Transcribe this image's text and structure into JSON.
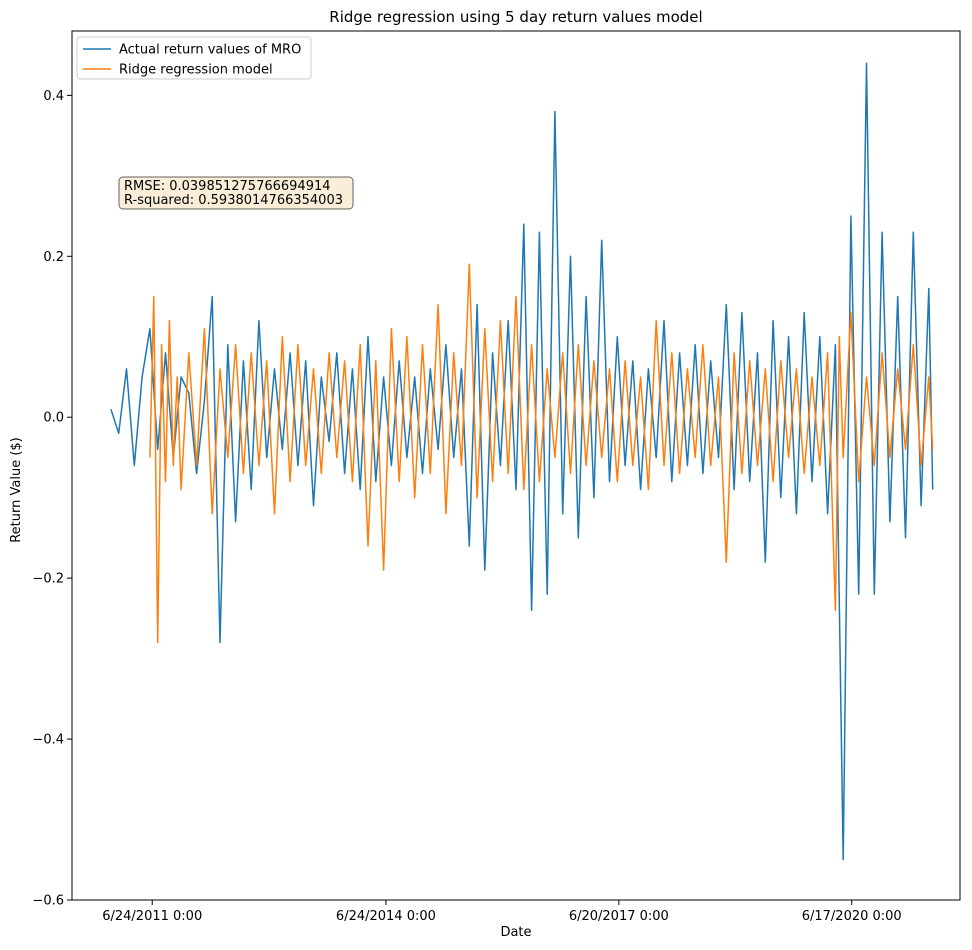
{
  "chart_data": {
    "type": "line",
    "title": "Ridge regression using 5 day return values model",
    "xlabel": "Date",
    "ylabel": "Return Value ($)",
    "ylim": [
      -0.6,
      0.48
    ],
    "yticks": [
      -0.6,
      -0.4,
      -0.2,
      0.0,
      0.2,
      0.4
    ],
    "ytick_labels": [
      "−0.6",
      "−0.4",
      "−0.2",
      "0.0",
      "0.2",
      "0.4"
    ],
    "xlim": [
      2010.45,
      2021.85
    ],
    "xticks": [
      2011.48,
      2014.48,
      2017.47,
      2020.46
    ],
    "xtick_labels": [
      "6/24/2011 0:00",
      "6/24/2014 0:00",
      "6/20/2017 0:00",
      "6/17/2020 0:00"
    ],
    "grid": false,
    "legend_position": "top-left",
    "annotation": {
      "lines": [
        "RMSE: 0.039851275766694914",
        "R-squared: 0.5938014766354003"
      ]
    },
    "series": [
      {
        "name": "Actual return values of MRO",
        "color": "#1f77b4",
        "x": [
          2010.95,
          2011.05,
          2011.15,
          2011.25,
          2011.35,
          2011.45,
          2011.55,
          2011.65,
          2011.75,
          2011.85,
          2011.95,
          2012.05,
          2012.15,
          2012.25,
          2012.35,
          2012.45,
          2012.55,
          2012.65,
          2012.75,
          2012.85,
          2012.95,
          2013.05,
          2013.15,
          2013.25,
          2013.35,
          2013.45,
          2013.55,
          2013.65,
          2013.75,
          2013.85,
          2013.95,
          2014.05,
          2014.15,
          2014.25,
          2014.35,
          2014.45,
          2014.55,
          2014.65,
          2014.75,
          2014.85,
          2014.95,
          2015.05,
          2015.15,
          2015.25,
          2015.35,
          2015.45,
          2015.55,
          2015.65,
          2015.75,
          2015.85,
          2015.95,
          2016.05,
          2016.15,
          2016.25,
          2016.35,
          2016.45,
          2016.55,
          2016.65,
          2016.75,
          2016.85,
          2016.95,
          2017.05,
          2017.15,
          2017.25,
          2017.35,
          2017.45,
          2017.55,
          2017.65,
          2017.75,
          2017.85,
          2017.95,
          2018.05,
          2018.15,
          2018.25,
          2018.35,
          2018.45,
          2018.55,
          2018.65,
          2018.75,
          2018.85,
          2018.95,
          2019.05,
          2019.15,
          2019.25,
          2019.35,
          2019.45,
          2019.55,
          2019.65,
          2019.75,
          2019.85,
          2019.95,
          2020.05,
          2020.15,
          2020.25,
          2020.35,
          2020.45,
          2020.55,
          2020.65,
          2020.75,
          2020.85,
          2020.95,
          2021.05,
          2021.15,
          2021.25,
          2021.35,
          2021.45,
          2021.5
        ],
        "y": [
          0.01,
          -0.02,
          0.06,
          -0.06,
          0.05,
          0.11,
          -0.04,
          0.08,
          -0.05,
          0.05,
          0.03,
          -0.07,
          0.02,
          0.15,
          -0.28,
          0.09,
          -0.13,
          0.07,
          -0.09,
          0.12,
          -0.05,
          0.06,
          -0.04,
          0.08,
          -0.06,
          0.07,
          -0.11,
          0.05,
          -0.03,
          0.08,
          -0.07,
          0.06,
          -0.09,
          0.1,
          -0.08,
          0.05,
          -0.06,
          0.07,
          -0.05,
          0.05,
          -0.07,
          0.06,
          -0.04,
          0.09,
          -0.05,
          0.06,
          -0.16,
          0.14,
          -0.19,
          0.08,
          -0.06,
          0.12,
          -0.09,
          0.24,
          -0.24,
          0.23,
          -0.22,
          0.38,
          -0.12,
          0.2,
          -0.15,
          0.15,
          -0.1,
          0.22,
          -0.08,
          0.1,
          -0.06,
          0.07,
          -0.09,
          0.06,
          -0.05,
          0.12,
          -0.08,
          0.08,
          -0.06,
          0.09,
          -0.07,
          0.07,
          -0.05,
          0.14,
          -0.09,
          0.13,
          -0.08,
          0.08,
          -0.18,
          0.12,
          -0.1,
          0.1,
          -0.12,
          0.13,
          -0.08,
          0.1,
          -0.12,
          0.09,
          -0.55,
          0.25,
          -0.22,
          0.44,
          -0.22,
          0.23,
          -0.13,
          0.15,
          -0.15,
          0.23,
          -0.11,
          0.16,
          -0.09
        ]
      },
      {
        "name": "Ridge regression model",
        "color": "#ff7f0e",
        "x": [
          2011.45,
          2011.5,
          2011.55,
          2011.6,
          2011.65,
          2011.7,
          2011.75,
          2011.8,
          2011.85,
          2011.95,
          2012.05,
          2012.15,
          2012.25,
          2012.35,
          2012.45,
          2012.55,
          2012.65,
          2012.75,
          2012.85,
          2012.95,
          2013.05,
          2013.15,
          2013.25,
          2013.35,
          2013.45,
          2013.55,
          2013.65,
          2013.75,
          2013.85,
          2013.95,
          2014.05,
          2014.15,
          2014.25,
          2014.35,
          2014.45,
          2014.55,
          2014.65,
          2014.75,
          2014.85,
          2014.95,
          2015.05,
          2015.15,
          2015.25,
          2015.35,
          2015.45,
          2015.55,
          2015.65,
          2015.75,
          2015.85,
          2015.95,
          2016.05,
          2016.15,
          2016.25,
          2016.35,
          2016.45,
          2016.55,
          2016.65,
          2016.75,
          2016.85,
          2016.95,
          2017.05,
          2017.15,
          2017.25,
          2017.35,
          2017.45,
          2017.55,
          2017.65,
          2017.75,
          2017.85,
          2017.95,
          2018.05,
          2018.15,
          2018.25,
          2018.35,
          2018.45,
          2018.55,
          2018.65,
          2018.75,
          2018.85,
          2018.95,
          2019.05,
          2019.15,
          2019.25,
          2019.35,
          2019.45,
          2019.55,
          2019.65,
          2019.75,
          2019.85,
          2019.95,
          2020.05,
          2020.15,
          2020.25,
          2020.3,
          2020.35,
          2020.45,
          2020.55,
          2020.65,
          2020.75,
          2020.85,
          2020.95,
          2021.05,
          2021.15,
          2021.25,
          2021.35,
          2021.45,
          2021.5
        ],
        "y": [
          -0.05,
          0.15,
          -0.28,
          0.09,
          -0.08,
          0.12,
          -0.06,
          0.05,
          -0.09,
          0.08,
          -0.06,
          0.11,
          -0.12,
          0.06,
          -0.05,
          0.09,
          -0.07,
          0.08,
          -0.06,
          0.07,
          -0.12,
          0.1,
          -0.08,
          0.09,
          -0.06,
          0.06,
          -0.07,
          0.08,
          -0.05,
          0.07,
          -0.08,
          0.09,
          -0.16,
          0.07,
          -0.19,
          0.11,
          -0.08,
          0.1,
          -0.1,
          0.09,
          -0.07,
          0.14,
          -0.12,
          0.08,
          -0.06,
          0.19,
          -0.1,
          0.11,
          -0.08,
          0.12,
          -0.07,
          0.15,
          -0.09,
          0.09,
          -0.08,
          0.06,
          -0.05,
          0.08,
          -0.07,
          0.09,
          -0.06,
          0.07,
          -0.05,
          0.06,
          -0.08,
          0.07,
          -0.06,
          0.05,
          -0.09,
          0.12,
          -0.06,
          0.08,
          -0.07,
          0.06,
          -0.05,
          0.09,
          -0.06,
          0.05,
          -0.18,
          0.08,
          -0.07,
          0.07,
          -0.06,
          0.06,
          -0.08,
          0.07,
          -0.05,
          0.06,
          -0.07,
          0.05,
          -0.06,
          0.08,
          -0.24,
          0.1,
          -0.05,
          0.13,
          -0.08,
          0.05,
          -0.06,
          0.08,
          -0.05,
          0.06,
          -0.04,
          0.09,
          -0.06,
          0.05,
          -0.04
        ]
      }
    ]
  }
}
